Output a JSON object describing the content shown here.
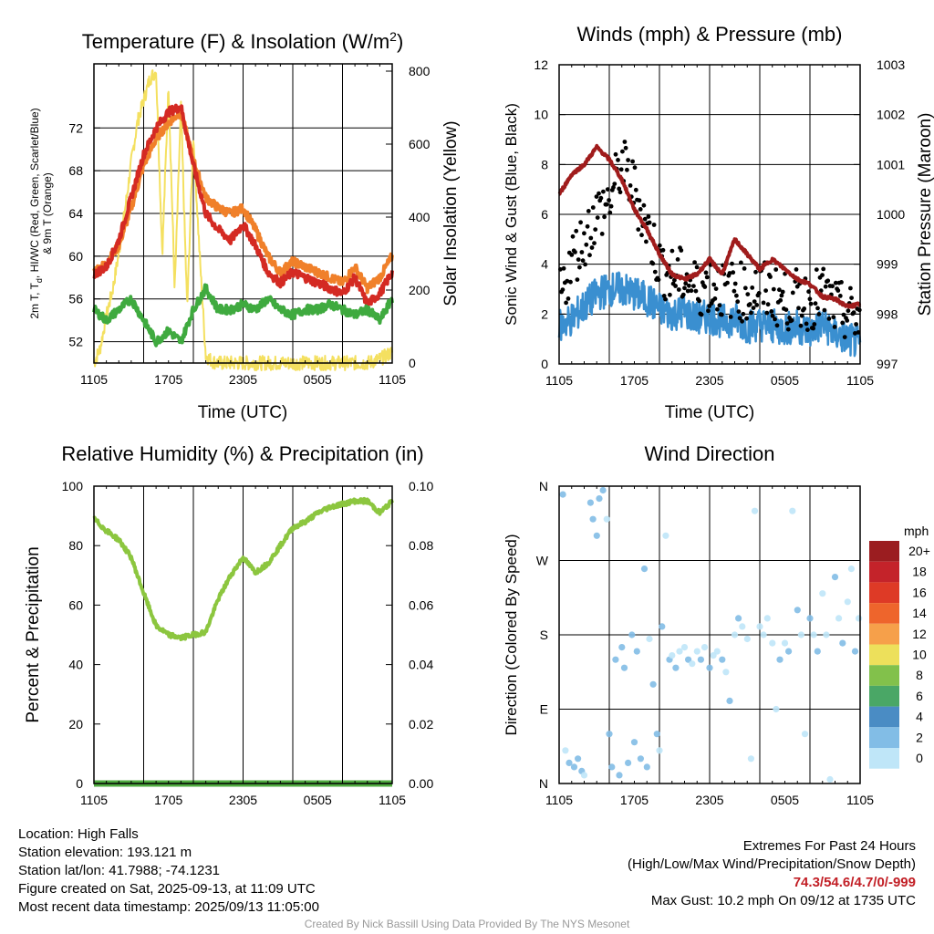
{
  "chart_data": [
    {
      "type": "line",
      "title": "Temperature (F) & Insolation (W/m²)",
      "xlabel": "Time (UTC)",
      "ylabel_left": "2m T, Td, HI/WC (Red, Green, Scarlet/Blue) & 9m T (Orange)",
      "ylabel_right": "Solar Insolation (Yellow)",
      "x_ticks": [
        "1105",
        "1705",
        "2305",
        "0505",
        "1105"
      ],
      "x_unit": "hours since 1105 UTC",
      "xlim": [
        0,
        24
      ],
      "ylim_left": [
        50,
        78
      ],
      "yticks_left": [
        52,
        56,
        60,
        64,
        68,
        72
      ],
      "ylim_right": [
        0,
        820
      ],
      "yticks_right": [
        0,
        200,
        400,
        600,
        800
      ],
      "series": [
        {
          "name": "2m T",
          "color": "#d42a23",
          "axis": "left",
          "x": [
            0,
            1,
            2,
            3,
            4,
            5,
            6,
            7,
            8,
            9,
            10,
            11,
            12,
            13,
            14,
            15,
            16,
            17,
            18,
            19,
            20,
            21,
            22,
            23,
            24
          ],
          "values": [
            58.3,
            59.0,
            61.5,
            65.5,
            69.5,
            72.0,
            73.5,
            74.0,
            68.5,
            64.0,
            62.5,
            61.5,
            63.0,
            61.0,
            58.5,
            57.5,
            58.5,
            58.0,
            57.5,
            57.0,
            56.5,
            58.0,
            55.5,
            56.5,
            58.5
          ]
        },
        {
          "name": "9m T",
          "color": "#f0802a",
          "axis": "left",
          "x": [
            0,
            1,
            2,
            3,
            4,
            5,
            6,
            7,
            8,
            9,
            10,
            11,
            12,
            13,
            14,
            15,
            16,
            17,
            18,
            19,
            20,
            21,
            22,
            23,
            24
          ],
          "values": [
            58.6,
            59.3,
            61.0,
            64.5,
            68.5,
            71.0,
            72.5,
            73.5,
            69.0,
            65.5,
            64.5,
            64.0,
            64.5,
            62.5,
            60.0,
            58.5,
            59.5,
            59.0,
            58.5,
            58.0,
            57.5,
            59.0,
            57.0,
            58.0,
            60.0
          ]
        },
        {
          "name": "2m Td",
          "color": "#3faa3f",
          "axis": "left",
          "x": [
            0,
            1,
            2,
            3,
            4,
            5,
            6,
            7,
            8,
            9,
            10,
            11,
            12,
            13,
            14,
            15,
            16,
            17,
            18,
            19,
            20,
            21,
            22,
            23,
            24
          ],
          "values": [
            55.0,
            54.0,
            55.0,
            56.0,
            54.0,
            52.0,
            53.0,
            52.0,
            55.0,
            57.0,
            55.0,
            55.0,
            55.5,
            55.0,
            56.0,
            55.0,
            54.5,
            55.0,
            55.0,
            55.5,
            55.0,
            54.5,
            55.0,
            54.0,
            56.0
          ]
        },
        {
          "name": "Solar Insolation",
          "color": "#f4e060",
          "axis": "right",
          "x": [
            0,
            0.5,
            1,
            1.5,
            2,
            2.5,
            3,
            3.5,
            4,
            4.5,
            5,
            5.5,
            6,
            6.5,
            7,
            7.5,
            8,
            8.5,
            9,
            9.5,
            10,
            12,
            14,
            16,
            18,
            20,
            22,
            23,
            24
          ],
          "values": [
            0,
            40,
            130,
            200,
            300,
            420,
            550,
            660,
            720,
            780,
            800,
            300,
            760,
            200,
            700,
            150,
            620,
            300,
            20,
            5,
            0,
            0,
            0,
            0,
            0,
            0,
            0,
            10,
            30
          ]
        }
      ]
    },
    {
      "type": "line",
      "title": "Winds (mph) & Pressure (mb)",
      "xlabel": "Time (UTC)",
      "ylabel_left": "Sonic Wind & Gust (Blue, Black)",
      "ylabel_right": "Station Pressure (Maroon)",
      "x_ticks": [
        "1105",
        "1705",
        "2305",
        "0505",
        "1105"
      ],
      "x_unit": "hours since 1105 UTC",
      "xlim": [
        0,
        24
      ],
      "ylim_left": [
        0,
        12
      ],
      "yticks_left": [
        0,
        2,
        4,
        6,
        8,
        10,
        12
      ],
      "ylim_right": [
        997,
        1003
      ],
      "yticks_right": [
        997,
        998,
        999,
        1000,
        1001,
        1002,
        1003
      ],
      "series": [
        {
          "name": "Sonic Wind",
          "color": "#3a8fd0",
          "axis": "left",
          "x": [
            0,
            1,
            2,
            3,
            4,
            5,
            6,
            7,
            8,
            9,
            10,
            11,
            12,
            13,
            14,
            15,
            16,
            17,
            18,
            19,
            20,
            21,
            22,
            23,
            24
          ],
          "values": [
            1.5,
            1.8,
            2.3,
            2.8,
            3.0,
            3.0,
            2.8,
            2.6,
            2.2,
            2.0,
            2.1,
            1.8,
            1.9,
            1.7,
            1.8,
            1.5,
            1.6,
            1.5,
            1.4,
            1.5,
            1.3,
            1.6,
            1.2,
            1.0,
            0.8
          ]
        },
        {
          "name": "Gust",
          "color": "#000000",
          "axis": "left",
          "x": [
            0,
            1,
            2,
            3,
            4,
            5,
            6,
            7,
            8,
            9,
            10,
            11,
            12,
            13,
            14,
            15,
            16,
            17,
            18,
            19,
            20,
            21,
            22,
            23,
            24
          ],
          "values": [
            2.5,
            4.2,
            5.0,
            6.0,
            6.5,
            8.0,
            7.0,
            5.5,
            4.0,
            3.5,
            3.5,
            3.0,
            3.2,
            3.0,
            3.0,
            2.8,
            3.0,
            2.8,
            2.5,
            2.6,
            2.5,
            2.8,
            2.2,
            2.0,
            1.8
          ]
        },
        {
          "name": "Station Pressure",
          "color": "#a01c1c",
          "axis": "right",
          "x": [
            0,
            1,
            2,
            3,
            4,
            5,
            6,
            7,
            8,
            9,
            10,
            11,
            12,
            13,
            14,
            15,
            16,
            17,
            18,
            19,
            20,
            21,
            22,
            23,
            24
          ],
          "values": [
            1000.4,
            1000.8,
            1001.0,
            1001.35,
            1001.1,
            1000.7,
            1000.1,
            999.7,
            999.2,
            998.8,
            998.7,
            998.8,
            999.1,
            998.8,
            999.5,
            999.2,
            998.9,
            999.1,
            998.9,
            998.7,
            998.6,
            998.35,
            998.3,
            998.15,
            998.2
          ]
        }
      ]
    },
    {
      "type": "line",
      "title": "Relative Humidity (%) & Precipitation (in)",
      "ylabel_left": "Percent & Precipitation",
      "x_ticks": [
        "1105",
        "1705",
        "2305",
        "0505",
        "1105"
      ],
      "x_unit": "hours since 1105 UTC",
      "xlim": [
        0,
        24
      ],
      "ylim_left": [
        0,
        100
      ],
      "yticks_left": [
        0,
        20,
        40,
        60,
        80,
        100
      ],
      "ylim_right": [
        0,
        0.1
      ],
      "yticks_right": [
        "0.00",
        "0.02",
        "0.04",
        "0.06",
        "0.08",
        "0.10"
      ],
      "series": [
        {
          "name": "Relative Humidity",
          "color": "#8cc63f",
          "axis": "left",
          "x": [
            0,
            1,
            2,
            3,
            4,
            5,
            6,
            7,
            8,
            9,
            10,
            11,
            12,
            13,
            14,
            15,
            16,
            17,
            18,
            19,
            20,
            21,
            22,
            23,
            24
          ],
          "values": [
            89,
            85,
            82,
            76,
            64,
            53,
            50,
            49,
            50,
            51,
            62,
            70,
            76,
            71,
            74,
            80,
            86,
            88,
            91,
            93,
            94,
            95,
            95,
            91,
            95
          ]
        },
        {
          "name": "Precipitation",
          "color": "#4faa3f",
          "axis": "right",
          "x": [
            0,
            24
          ],
          "values": [
            0,
            0
          ]
        }
      ]
    },
    {
      "type": "scatter",
      "title": "Wind Direction",
      "ylabel": "Direction (Colored By Speed)",
      "x_ticks": [
        "1105",
        "1705",
        "2305",
        "0505",
        "1105"
      ],
      "x_unit": "hours since 1105 UTC",
      "xlim": [
        0,
        24
      ],
      "y_ticks": [
        "N",
        "E",
        "S",
        "W",
        "N"
      ],
      "ylim": [
        0,
        360
      ],
      "legend_title": "mph",
      "legend_labels": [
        "20+",
        "18",
        "16",
        "14",
        "12",
        "10",
        "8",
        "6",
        "4",
        "2",
        "0"
      ],
      "legend_colors": [
        "#9b1d20",
        "#c4232a",
        "#de3a26",
        "#ee652c",
        "#f6a04a",
        "#ede05b",
        "#82c14b",
        "#4aa766",
        "#4a8cc4",
        "#82bde6",
        "#bfe6f8"
      ],
      "points": [
        {
          "x": 0.3,
          "dir": 350,
          "speed": 2
        },
        {
          "x": 0.5,
          "dir": 40,
          "speed": 1
        },
        {
          "x": 0.8,
          "dir": 25,
          "speed": 2
        },
        {
          "x": 1.2,
          "dir": 20,
          "speed": 3
        },
        {
          "x": 1.5,
          "dir": 30,
          "speed": 3
        },
        {
          "x": 1.8,
          "dir": 15,
          "speed": 2
        },
        {
          "x": 2.0,
          "dir": 10,
          "speed": 1
        },
        {
          "x": 2.5,
          "dir": 340,
          "speed": 3
        },
        {
          "x": 2.7,
          "dir": 320,
          "speed": 2
        },
        {
          "x": 3.0,
          "dir": 300,
          "speed": 3
        },
        {
          "x": 3.2,
          "dir": 345,
          "speed": 2
        },
        {
          "x": 3.5,
          "dir": 355,
          "speed": 2
        },
        {
          "x": 3.8,
          "dir": 320,
          "speed": 1
        },
        {
          "x": 4.0,
          "dir": 60,
          "speed": 3
        },
        {
          "x": 4.2,
          "dir": 20,
          "speed": 2
        },
        {
          "x": 4.5,
          "dir": 150,
          "speed": 2
        },
        {
          "x": 4.8,
          "dir": 10,
          "speed": 3
        },
        {
          "x": 5.0,
          "dir": 165,
          "speed": 3
        },
        {
          "x": 5.2,
          "dir": 140,
          "speed": 2
        },
        {
          "x": 5.5,
          "dir": 25,
          "speed": 2
        },
        {
          "x": 5.8,
          "dir": 180,
          "speed": 3
        },
        {
          "x": 6.0,
          "dir": 50,
          "speed": 2
        },
        {
          "x": 6.2,
          "dir": 160,
          "speed": 2
        },
        {
          "x": 6.5,
          "dir": 30,
          "speed": 3
        },
        {
          "x": 6.8,
          "dir": 260,
          "speed": 2
        },
        {
          "x": 7.0,
          "dir": 20,
          "speed": 2
        },
        {
          "x": 7.2,
          "dir": 175,
          "speed": 1
        },
        {
          "x": 7.5,
          "dir": 120,
          "speed": 2
        },
        {
          "x": 7.8,
          "dir": 60,
          "speed": 2
        },
        {
          "x": 8.0,
          "dir": 40,
          "speed": 1
        },
        {
          "x": 8.2,
          "dir": 190,
          "speed": 2
        },
        {
          "x": 8.5,
          "dir": 300,
          "speed": 1
        },
        {
          "x": 8.8,
          "dir": 150,
          "speed": 2
        },
        {
          "x": 9.0,
          "dir": 155,
          "speed": 1
        },
        {
          "x": 9.3,
          "dir": 140,
          "speed": 2
        },
        {
          "x": 9.6,
          "dir": 160,
          "speed": 1
        },
        {
          "x": 10.0,
          "dir": 165,
          "speed": 1
        },
        {
          "x": 10.3,
          "dir": 150,
          "speed": 2
        },
        {
          "x": 10.6,
          "dir": 145,
          "speed": 1
        },
        {
          "x": 11.0,
          "dir": 160,
          "speed": 1
        },
        {
          "x": 11.3,
          "dir": 150,
          "speed": 2
        },
        {
          "x": 11.6,
          "dir": 165,
          "speed": 1
        },
        {
          "x": 12.0,
          "dir": 140,
          "speed": 2
        },
        {
          "x": 12.3,
          "dir": 155,
          "speed": 1
        },
        {
          "x": 12.6,
          "dir": 160,
          "speed": 1
        },
        {
          "x": 13.0,
          "dir": 150,
          "speed": 2
        },
        {
          "x": 13.3,
          "dir": 135,
          "speed": 1
        },
        {
          "x": 13.6,
          "dir": 100,
          "speed": 2
        },
        {
          "x": 14.0,
          "dir": 180,
          "speed": 1
        },
        {
          "x": 14.3,
          "dir": 200,
          "speed": 2
        },
        {
          "x": 14.6,
          "dir": 190,
          "speed": 1
        },
        {
          "x": 15.0,
          "dir": 175,
          "speed": 1
        },
        {
          "x": 15.3,
          "dir": 30,
          "speed": 1
        },
        {
          "x": 15.6,
          "dir": 330,
          "speed": 1
        },
        {
          "x": 16.0,
          "dir": 190,
          "speed": 1
        },
        {
          "x": 16.3,
          "dir": 180,
          "speed": 1
        },
        {
          "x": 16.6,
          "dir": 200,
          "speed": 1
        },
        {
          "x": 17.0,
          "dir": 170,
          "speed": 1
        },
        {
          "x": 17.3,
          "dir": 90,
          "speed": 1
        },
        {
          "x": 17.6,
          "dir": 150,
          "speed": 2
        },
        {
          "x": 18.0,
          "dir": 170,
          "speed": 1
        },
        {
          "x": 18.3,
          "dir": 160,
          "speed": 2
        },
        {
          "x": 18.6,
          "dir": 330,
          "speed": 1
        },
        {
          "x": 19.0,
          "dir": 210,
          "speed": 2
        },
        {
          "x": 19.3,
          "dir": 180,
          "speed": 1
        },
        {
          "x": 19.6,
          "dir": 60,
          "speed": 1
        },
        {
          "x": 20.0,
          "dir": 200,
          "speed": 2
        },
        {
          "x": 20.3,
          "dir": 180,
          "speed": 1
        },
        {
          "x": 20.6,
          "dir": 160,
          "speed": 2
        },
        {
          "x": 21.0,
          "dir": 230,
          "speed": 1
        },
        {
          "x": 21.3,
          "dir": 180,
          "speed": 1
        },
        {
          "x": 21.6,
          "dir": 5,
          "speed": 1
        },
        {
          "x": 22.0,
          "dir": 250,
          "speed": 2
        },
        {
          "x": 22.3,
          "dir": 200,
          "speed": 1
        },
        {
          "x": 22.6,
          "dir": 170,
          "speed": 2
        },
        {
          "x": 23.0,
          "dir": 220,
          "speed": 1
        },
        {
          "x": 23.3,
          "dir": 260,
          "speed": 1
        },
        {
          "x": 23.6,
          "dir": 160,
          "speed": 2
        },
        {
          "x": 23.9,
          "dir": 200,
          "speed": 1
        }
      ]
    }
  ],
  "panels": [
    {
      "title_main": "Temperature (F) & Insolation (W/m",
      "title_sup": "2",
      "title_end": ")",
      "ylabel_left_line1": "2m T, T",
      "ylabel_left_sub": "d",
      "ylabel_left_line1_end": ", HI/WC (Red, Green, Scarlet/Blue)",
      "ylabel_left_line2": "& 9m T (Orange)",
      "ylabel_right": "Solar Insolation (Yellow)",
      "xlabel": "Time (UTC)"
    },
    {
      "title": "Winds (mph) & Pressure (mb)",
      "ylabel_left": "Sonic Wind & Gust (Blue, Black)",
      "ylabel_right": "Station Pressure (Maroon)",
      "xlabel": "Time (UTC)"
    },
    {
      "title": "Relative Humidity (%) & Precipitation (in)",
      "ylabel_left": "Percent & Precipitation"
    },
    {
      "title": "Wind Direction",
      "ylabel_left": "Direction (Colored By Speed)"
    }
  ],
  "footer": {
    "location": "Location: High Falls",
    "elevation": "Station elevation: 193.121 m",
    "latlon": "Station lat/lon: 41.7988; -74.1231",
    "created": "Figure created on Sat, 2025-09-13, at 11:09 UTC",
    "recent": "Most recent data timestamp: 2025/09/13 11:05:00",
    "extremes_title": "Extremes For Past 24 Hours",
    "extremes_legend": "(High/Low/Max Wind/Precipitation/Snow Depth)",
    "extremes_values": "74.3/54.6/4.7/0/-999",
    "max_gust": "Max Gust: 10.2 mph On 09/12 at 1735 UTC",
    "credit": "Created By Nick Bassill Using Data Provided By The NYS Mesonet"
  }
}
